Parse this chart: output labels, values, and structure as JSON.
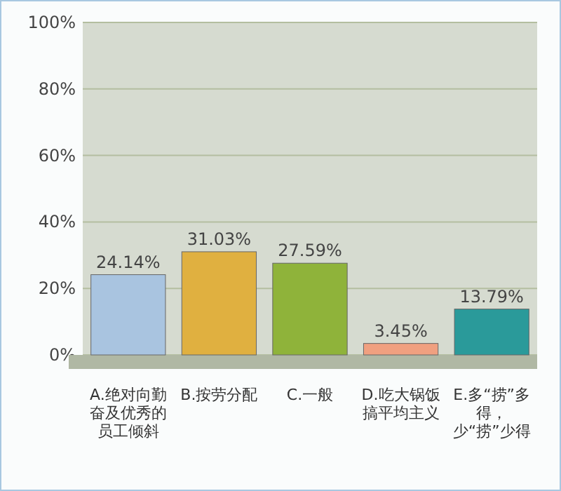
{
  "chart_data": {
    "type": "bar",
    "categories": [
      "A.绝对向勤奋及优秀的员工倾斜",
      "B.按劳分配",
      "C.一般",
      "D.吃大锅饭搞平均主义",
      "E.多“捞”多得，少“捞”少得"
    ],
    "values": [
      24.14,
      31.03,
      27.59,
      3.45,
      13.79
    ],
    "colors": [
      "#a9c4e0",
      "#e0b040",
      "#8fb33a",
      "#f0a080",
      "#2a9a9a"
    ],
    "value_labels": [
      "24.14%",
      "31.03%",
      "27.59%",
      "3.45%",
      "13.79%"
    ],
    "ylim": [
      0,
      100
    ],
    "yticks": [
      {
        "value": 0,
        "label": "0%"
      },
      {
        "value": 20,
        "label": "20%"
      },
      {
        "value": 40,
        "label": "40%"
      },
      {
        "value": 60,
        "label": "60%"
      },
      {
        "value": 80,
        "label": "80%"
      },
      {
        "value": 100,
        "label": "100%"
      }
    ],
    "grid": "y"
  }
}
